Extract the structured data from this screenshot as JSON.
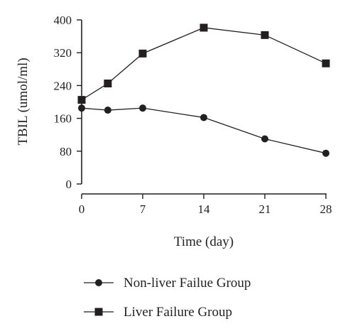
{
  "chart_data": {
    "type": "line",
    "xlabel": "Time (day)",
    "ylabel": "TBIL (umol/ml)",
    "x": [
      0,
      3,
      7,
      14,
      21,
      28
    ],
    "xticks": [
      "0",
      "7",
      "14",
      "21",
      "28"
    ],
    "xtick_values": [
      0,
      7,
      14,
      21,
      28
    ],
    "yticks": [
      "0",
      "80",
      "160",
      "240",
      "320",
      "400"
    ],
    "ytick_values": [
      0,
      80,
      160,
      240,
      320,
      400
    ],
    "xlim": [
      0,
      28
    ],
    "ylim": [
      0,
      400
    ],
    "grid": false,
    "legend_position": "bottom",
    "series": [
      {
        "name": "Non-liver Failue Group",
        "marker": "circle",
        "values": [
          185,
          180,
          185,
          162,
          110,
          75
        ]
      },
      {
        "name": "Liver Failure Group",
        "marker": "square",
        "values": [
          205,
          245,
          318,
          381,
          363,
          294
        ]
      }
    ],
    "colors": {
      "ink": "#231f20"
    }
  }
}
